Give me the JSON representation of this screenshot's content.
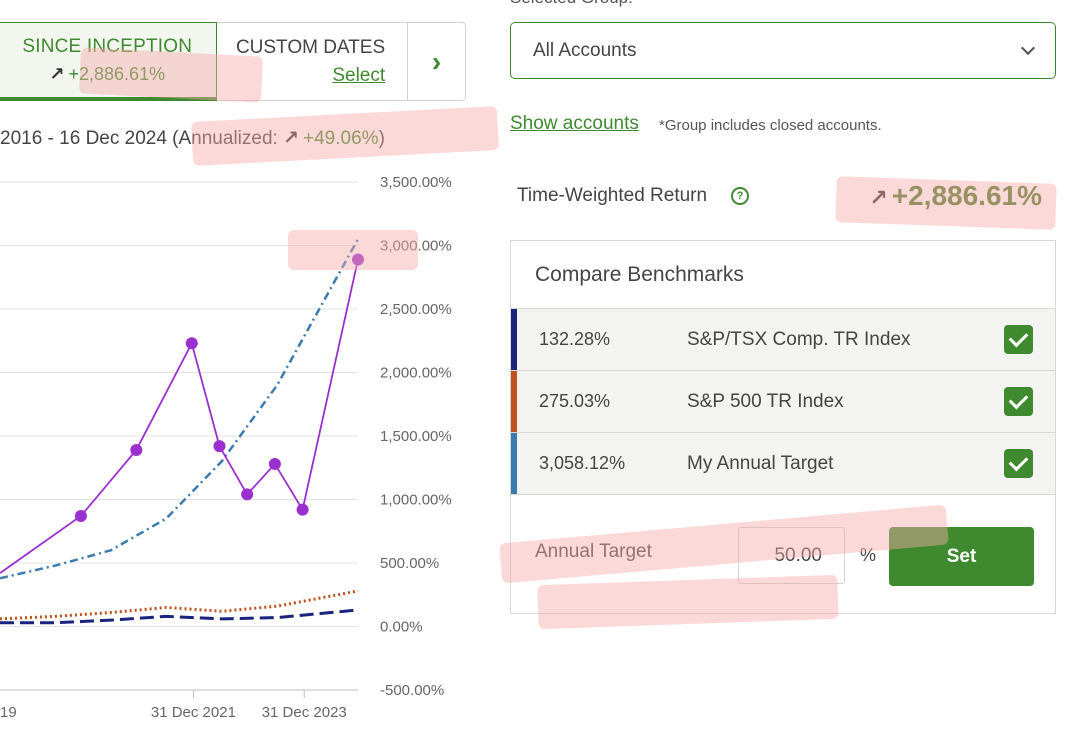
{
  "period_tabs": {
    "since_inception": {
      "label": "SINCE INCEPTION",
      "value": "+2,886.61%"
    },
    "custom_dates": {
      "label": "CUSTOM DATES",
      "link": "Select"
    },
    "next_icon": "chevron-right-icon"
  },
  "date_range": {
    "text": "2016 - 16 Dec 2024 (Annualized: ",
    "annualized": "+49.06%",
    "close": ")"
  },
  "chart_data": {
    "type": "line",
    "y_ticks": [
      "3,500.00%",
      "3,000.00%",
      "2,500.00%",
      "2,000.00%",
      "1,500.00%",
      "1,000.00%",
      "500.00%",
      "0.00%",
      "-500.00%"
    ],
    "x_ticks": [
      "19",
      "31 Dec 2021",
      "31 Dec 2023"
    ],
    "ylim": [
      -500,
      3500
    ],
    "x_year_range": [
      2018.5,
      2024.96
    ],
    "y_axis_position": "right",
    "grid": true,
    "series": [
      {
        "name": "",
        "color": "#9b30d0",
        "style": "solid-markers",
        "x": [
          2018.5,
          2019.96,
          2020.96,
          2021.96,
          2022.46,
          2022.96,
          2023.46,
          2023.96,
          2024.96
        ],
        "y": [
          420,
          870,
          1390,
          2230,
          1420,
          1040,
          1280,
          920,
          2890
        ]
      },
      {
        "name": "My Annual Target",
        "color": "#3b7bb0",
        "style": "dashdot",
        "x": [
          2018.5,
          2019.5,
          2020.5,
          2021.5,
          2022.5,
          2023.5,
          2024.96
        ],
        "y": [
          380,
          480,
          600,
          850,
          1300,
          1900,
          3050
        ]
      },
      {
        "name": "S&P 500 TR Index",
        "color": "#c0521e",
        "style": "dotted",
        "x": [
          2018.5,
          2019.5,
          2020.5,
          2021.5,
          2022.5,
          2023.5,
          2024.96
        ],
        "y": [
          60,
          80,
          110,
          150,
          120,
          160,
          280
        ]
      },
      {
        "name": "S&P/TSX Comp. TR Index",
        "color": "#1a237e",
        "style": "dashed",
        "x": [
          2018.5,
          2019.5,
          2020.5,
          2021.5,
          2022.5,
          2023.5,
          2024.96
        ],
        "y": [
          30,
          30,
          50,
          80,
          60,
          70,
          130
        ]
      }
    ]
  },
  "group": {
    "label": "Selected Group:",
    "selected": "All Accounts",
    "show_accounts": "Show accounts",
    "note": "*Group includes closed accounts."
  },
  "twr": {
    "label": "Time-Weighted Return",
    "value": "+2,886.61%"
  },
  "benchmarks": {
    "title": "Compare Benchmarks",
    "rows": [
      {
        "pct": "132.28%",
        "name": "S&P/TSX Comp. TR Index",
        "color": "#1a237e",
        "checked": true
      },
      {
        "pct": "275.03%",
        "name": "S&P 500 TR Index",
        "color": "#c0521e",
        "checked": true
      },
      {
        "pct": "3,058.12%",
        "name": "My Annual Target",
        "color": "#3b7bb0",
        "checked": true
      }
    ],
    "target_label": "Annual Target",
    "target_value": "50.00",
    "target_unit": "%",
    "set_label": "Set"
  }
}
